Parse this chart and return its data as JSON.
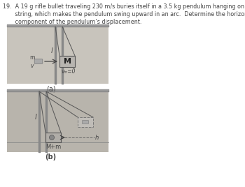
{
  "bg_color": "#ffffff",
  "text_color": "#444444",
  "title": "19.  A 19 g rifle bullet traveling 230 m/s buries itself in a 3.5 kg pendulum hanging on a 28 m long\n       string, which makes the pendulum swing upward in an arc.  Determine the horizontal\n       component of the pendulum’s displacement.",
  "panel_a_bg": "#c8c4bc",
  "panel_b_bg": "#b8b4ac",
  "ceiling_color": "#aaaaaa",
  "pole_color": "#777777",
  "box_color": "#c0bdb8",
  "box_edge": "#666666",
  "label_a": "(a)",
  "label_b": "(b)",
  "m_label": "m",
  "M_label": "M",
  "vM_label": "vₘ=0",
  "Mm_label": "M+m",
  "l_label": "l",
  "h_label": "h",
  "v_label": "v"
}
